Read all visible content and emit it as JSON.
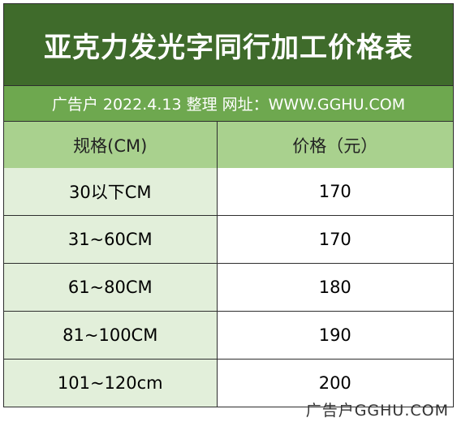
{
  "title": "亚克力发光字同行加工价格表",
  "info": "广告户 2022.4.13 整理 网址：WWW.GGHU.COM",
  "table": {
    "headers": [
      "规格(CM)",
      "价格（元）"
    ],
    "rows": [
      {
        "size": "30以下CM",
        "price": "170"
      },
      {
        "size": "31~60CM",
        "price": "170"
      },
      {
        "size": "61~80CM",
        "price": "180"
      },
      {
        "size": "81~100CM",
        "price": "190"
      },
      {
        "size": "101~120cm",
        "price": "200"
      }
    ]
  },
  "watermark": "广告户GGHU.COM",
  "colors": {
    "title_bg": "#3f6b2b",
    "info_bg": "#6ea84f",
    "header_bg": "#a9d18e",
    "size_cell_bg": "#e2efda"
  }
}
